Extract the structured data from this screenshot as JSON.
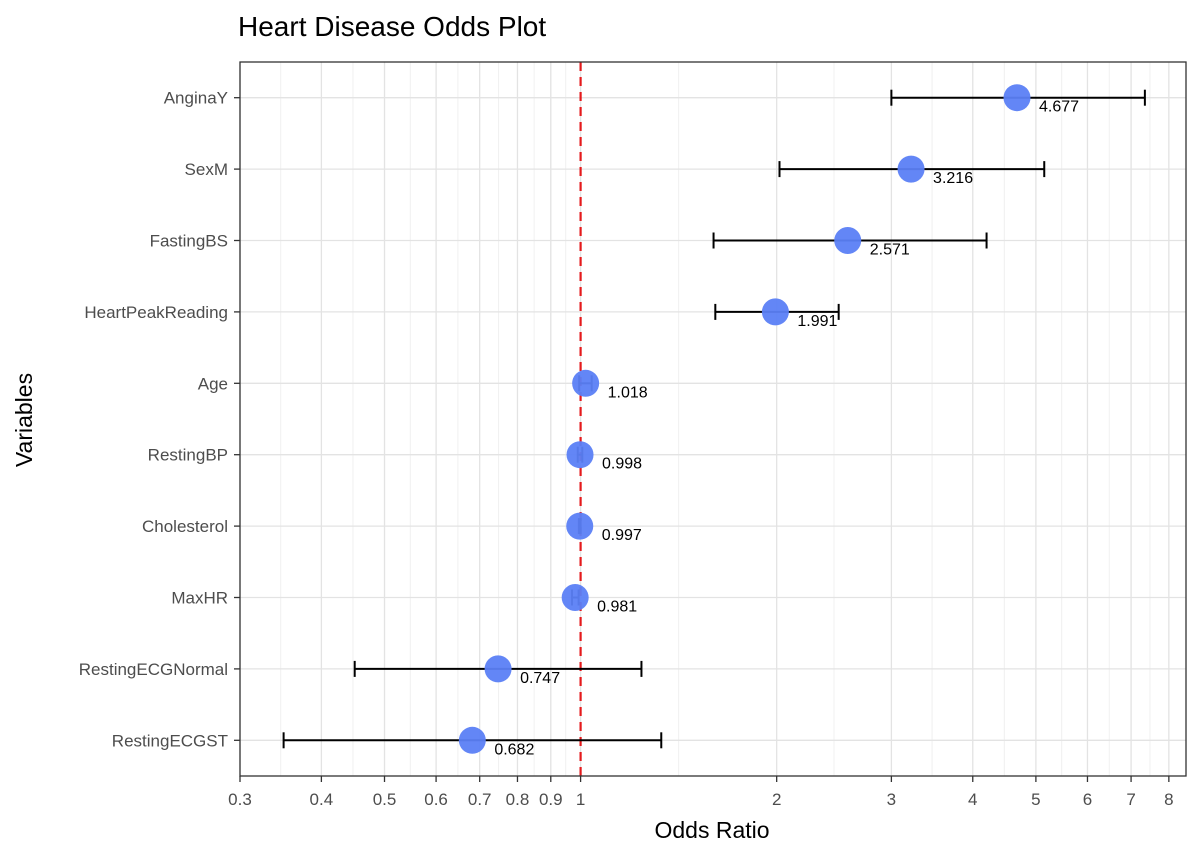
{
  "chart_data": {
    "type": "scatter",
    "title": "Heart Disease Odds Plot",
    "xlabel": "Odds Ratio",
    "ylabel": "Variables",
    "x_scale": "log",
    "xlim": [
      0.3,
      8.5
    ],
    "x_ticks": [
      0.3,
      0.4,
      0.5,
      0.6,
      0.7,
      0.8,
      0.9,
      1,
      2,
      3,
      4,
      5,
      6,
      7,
      8
    ],
    "x_tick_labels": [
      "0.3",
      "0.4",
      "0.5",
      "0.6",
      "0.7",
      "0.8",
      "0.9",
      "1",
      "2",
      "3",
      "4",
      "5",
      "6",
      "7",
      "8"
    ],
    "reference_line": {
      "x": 1,
      "style": "dashed",
      "color": "#e41a1c"
    },
    "grid": true,
    "legend": "none",
    "point_color": "#5b7ff5",
    "errorbar_color": "#000000",
    "categories": [
      "AnginaY",
      "SexM",
      "FastingBS",
      "HeartPeakReading",
      "Age",
      "RestingBP",
      "Cholesterol",
      "MaxHR",
      "RestingECGNormal",
      "RestingECGST"
    ],
    "points": [
      {
        "variable": "AnginaY",
        "odds_ratio": 4.677,
        "lower": 3.0,
        "upper": 7.35,
        "label": "4.677"
      },
      {
        "variable": "SexM",
        "odds_ratio": 3.216,
        "lower": 2.02,
        "upper": 5.15,
        "label": "3.216"
      },
      {
        "variable": "FastingBS",
        "odds_ratio": 2.571,
        "lower": 1.6,
        "upper": 4.2,
        "label": "2.571"
      },
      {
        "variable": "HeartPeakReading",
        "odds_ratio": 1.991,
        "lower": 1.61,
        "upper": 2.49,
        "label": "1.991"
      },
      {
        "variable": "Age",
        "odds_ratio": 1.018,
        "lower": 0.995,
        "upper": 1.04,
        "label": "1.018"
      },
      {
        "variable": "RestingBP",
        "odds_ratio": 0.998,
        "lower": 0.99,
        "upper": 1.006,
        "label": "0.998"
      },
      {
        "variable": "Cholesterol",
        "odds_ratio": 0.997,
        "lower": 0.994,
        "upper": 1.0,
        "label": "0.997"
      },
      {
        "variable": "MaxHR",
        "odds_ratio": 0.981,
        "lower": 0.97,
        "upper": 0.993,
        "label": "0.981"
      },
      {
        "variable": "RestingECGNormal",
        "odds_ratio": 0.747,
        "lower": 0.45,
        "upper": 1.24,
        "label": "0.747"
      },
      {
        "variable": "RestingECGST",
        "odds_ratio": 0.682,
        "lower": 0.35,
        "upper": 1.33,
        "label": "0.682"
      }
    ]
  }
}
